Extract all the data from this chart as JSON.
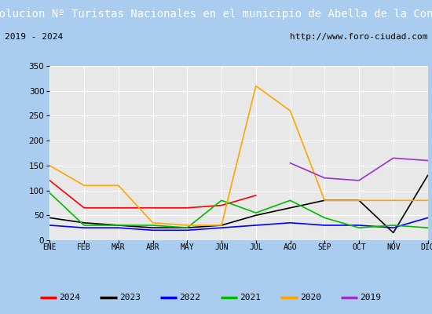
{
  "title": "Evolucion Nº Turistas Nacionales en el municipio de Abella de la Conca",
  "subtitle_left": "2019 - 2024",
  "subtitle_right": "http://www.foro-ciudad.com",
  "x_labels": [
    "ENE",
    "FEB",
    "MAR",
    "ABR",
    "MAY",
    "JUN",
    "JUL",
    "AGO",
    "SEP",
    "OCT",
    "NOV",
    "DIC"
  ],
  "ylim": [
    0,
    350
  ],
  "yticks": [
    0,
    50,
    100,
    150,
    200,
    250,
    300,
    350
  ],
  "series": {
    "2024": {
      "color": "#ff0000",
      "data": [
        120,
        65,
        65,
        65,
        65,
        70,
        90,
        null,
        null,
        null,
        null,
        null
      ]
    },
    "2023": {
      "color": "#000000",
      "data": [
        45,
        35,
        30,
        25,
        25,
        30,
        50,
        65,
        80,
        80,
        15,
        130
      ]
    },
    "2022": {
      "color": "#0000ff",
      "data": [
        30,
        25,
        25,
        20,
        20,
        25,
        30,
        35,
        30,
        30,
        25,
        45
      ]
    },
    "2021": {
      "color": "#00bb00",
      "data": [
        95,
        30,
        30,
        30,
        25,
        80,
        55,
        80,
        45,
        25,
        30,
        25
      ]
    },
    "2020": {
      "color": "#ffa500",
      "data": [
        150,
        110,
        110,
        35,
        30,
        30,
        310,
        260,
        80,
        80,
        80,
        80
      ]
    },
    "2019": {
      "color": "#9932cc",
      "data": [
        null,
        null,
        null,
        null,
        null,
        null,
        null,
        155,
        125,
        120,
        165,
        160
      ]
    }
  },
  "legend_order": [
    "2024",
    "2023",
    "2022",
    "2021",
    "2020",
    "2019"
  ],
  "title_bg_color": "#5577dd",
  "title_text_color": "#ffffff",
  "subtitle_bg_color": "#ffffff",
  "plot_bg_color": "#e8e8e8",
  "grid_color": "#ffffff",
  "outer_bg_color": "#aaccee",
  "title_fontsize": 10,
  "subtitle_fontsize": 8,
  "tick_fontsize": 7.5,
  "legend_fontsize": 8
}
